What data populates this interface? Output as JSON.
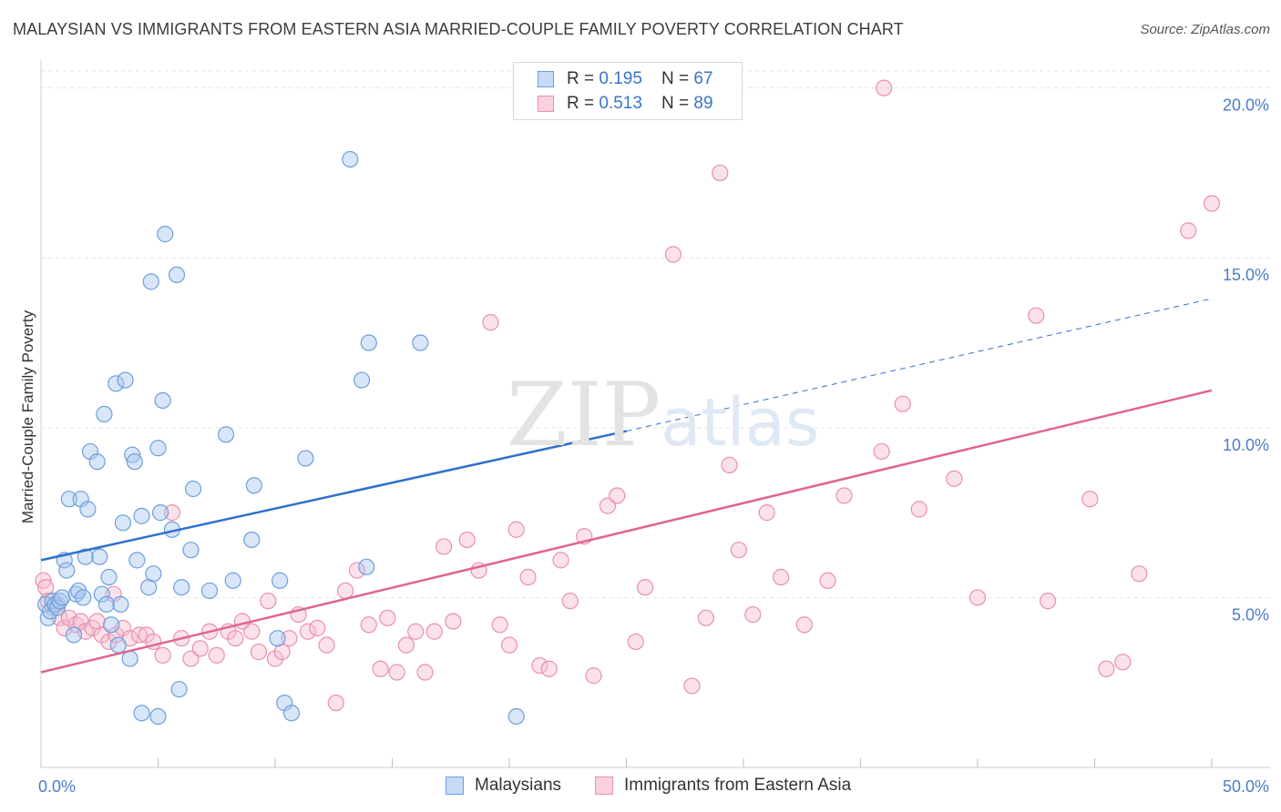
{
  "header": {
    "title": "MALAYSIAN VS IMMIGRANTS FROM EASTERN ASIA MARRIED-COUPLE FAMILY POVERTY CORRELATION CHART",
    "source": "Source: ZipAtlas.com"
  },
  "watermark": {
    "zip": "ZIP",
    "atlas": "atlas"
  },
  "legend_top": {
    "rows": [
      {
        "r_label": "R = ",
        "r_value": "0.195",
        "n_label": "N = ",
        "n_value": "67"
      },
      {
        "r_label": "R = ",
        "r_value": "0.513",
        "n_label": "N = ",
        "n_value": "89"
      }
    ]
  },
  "legend_bottom": {
    "series1": "Malaysians",
    "series2": "Immigrants from Eastern Asia"
  },
  "colors": {
    "blue_fill": "#a9c8ef",
    "blue_stroke": "#6e9fdc",
    "blue_line": "#2f6fce",
    "pink_fill": "#f7bfd1",
    "pink_stroke": "#e98fb0",
    "pink_line": "#e0648f",
    "grid": "#e3e3e3",
    "tick_text": "#4a7cc9"
  },
  "chart_data": {
    "type": "scatter",
    "title": "MALAYSIAN VS IMMIGRANTS FROM EASTERN ASIA MARRIED-COUPLE FAMILY POVERTY CORRELATION CHART",
    "xlabel": "",
    "ylabel": "Married-Couple Family Poverty",
    "xlim": [
      0,
      50
    ],
    "ylim": [
      0,
      20.5
    ],
    "x_tick_labels": [
      "0.0%",
      "50.0%"
    ],
    "y_ticks": [
      5,
      10,
      15,
      20
    ],
    "y_tick_labels": [
      "5.0%",
      "10.0%",
      "15.0%",
      "20.0%"
    ],
    "grid": true,
    "legend_position": "bottom",
    "series": [
      {
        "name": "Malaysians",
        "R": 0.195,
        "N": 67,
        "trend": {
          "x0": 0,
          "y0": 6.1,
          "x1": 25,
          "y1": 9.9,
          "dash_x1": 50,
          "dash_y1": 13.8
        },
        "points": [
          [
            0.2,
            4.8
          ],
          [
            0.3,
            4.4
          ],
          [
            0.4,
            4.6
          ],
          [
            0.5,
            4.9
          ],
          [
            0.6,
            4.8
          ],
          [
            0.7,
            4.7
          ],
          [
            0.8,
            4.9
          ],
          [
            0.9,
            5.0
          ],
          [
            1.0,
            6.1
          ],
          [
            1.1,
            5.8
          ],
          [
            1.2,
            7.9
          ],
          [
            1.4,
            3.9
          ],
          [
            1.5,
            5.1
          ],
          [
            1.6,
            5.2
          ],
          [
            1.7,
            7.9
          ],
          [
            1.8,
            5.0
          ],
          [
            1.9,
            6.2
          ],
          [
            2.0,
            7.6
          ],
          [
            2.1,
            9.3
          ],
          [
            2.4,
            9.0
          ],
          [
            2.5,
            6.2
          ],
          [
            2.6,
            5.1
          ],
          [
            2.7,
            10.4
          ],
          [
            2.8,
            4.8
          ],
          [
            2.9,
            5.6
          ],
          [
            3.0,
            4.2
          ],
          [
            3.2,
            11.3
          ],
          [
            3.3,
            3.6
          ],
          [
            3.4,
            4.8
          ],
          [
            3.5,
            7.2
          ],
          [
            3.6,
            11.4
          ],
          [
            3.8,
            3.2
          ],
          [
            3.9,
            9.2
          ],
          [
            4.0,
            9.0
          ],
          [
            4.1,
            6.1
          ],
          [
            4.3,
            7.4
          ],
          [
            4.3,
            1.6
          ],
          [
            4.6,
            5.3
          ],
          [
            4.7,
            14.3
          ],
          [
            4.8,
            5.7
          ],
          [
            5.0,
            9.4
          ],
          [
            5.0,
            1.5
          ],
          [
            5.1,
            7.5
          ],
          [
            5.2,
            10.8
          ],
          [
            5.3,
            15.7
          ],
          [
            5.6,
            7.0
          ],
          [
            5.8,
            14.5
          ],
          [
            5.9,
            2.3
          ],
          [
            6.0,
            5.3
          ],
          [
            6.4,
            6.4
          ],
          [
            6.5,
            8.2
          ],
          [
            7.2,
            5.2
          ],
          [
            7.9,
            9.8
          ],
          [
            8.2,
            5.5
          ],
          [
            9.0,
            6.7
          ],
          [
            9.1,
            8.3
          ],
          [
            10.1,
            3.8
          ],
          [
            10.2,
            5.5
          ],
          [
            10.4,
            1.9
          ],
          [
            10.7,
            1.6
          ],
          [
            11.3,
            9.1
          ],
          [
            13.2,
            17.9
          ],
          [
            13.7,
            11.4
          ],
          [
            13.9,
            5.9
          ],
          [
            14.0,
            12.5
          ],
          [
            16.2,
            12.5
          ],
          [
            20.3,
            1.5
          ]
        ]
      },
      {
        "name": "Immigrants from Eastern Asia",
        "R": 0.513,
        "N": 89,
        "trend": {
          "x0": 0,
          "y0": 2.8,
          "x1": 50,
          "y1": 11.1
        },
        "points": [
          [
            0.1,
            5.5
          ],
          [
            0.2,
            5.3
          ],
          [
            0.3,
            4.9
          ],
          [
            0.5,
            4.7
          ],
          [
            0.7,
            4.8
          ],
          [
            0.8,
            4.4
          ],
          [
            1.0,
            4.1
          ],
          [
            1.2,
            4.4
          ],
          [
            1.5,
            4.2
          ],
          [
            1.7,
            4.3
          ],
          [
            1.9,
            4.0
          ],
          [
            2.2,
            4.1
          ],
          [
            2.4,
            4.3
          ],
          [
            2.6,
            3.9
          ],
          [
            2.9,
            3.7
          ],
          [
            3.1,
            5.1
          ],
          [
            3.2,
            3.9
          ],
          [
            3.5,
            4.1
          ],
          [
            3.8,
            3.8
          ],
          [
            4.2,
            3.9
          ],
          [
            4.5,
            3.9
          ],
          [
            4.8,
            3.7
          ],
          [
            5.2,
            3.3
          ],
          [
            5.6,
            7.5
          ],
          [
            6.0,
            3.8
          ],
          [
            6.4,
            3.2
          ],
          [
            6.8,
            3.5
          ],
          [
            7.2,
            4.0
          ],
          [
            7.5,
            3.3
          ],
          [
            8.0,
            4.0
          ],
          [
            8.3,
            3.8
          ],
          [
            8.6,
            4.3
          ],
          [
            9.0,
            4.0
          ],
          [
            9.3,
            3.4
          ],
          [
            9.7,
            4.9
          ],
          [
            10.0,
            3.2
          ],
          [
            10.3,
            3.4
          ],
          [
            10.6,
            3.8
          ],
          [
            11.0,
            4.5
          ],
          [
            11.4,
            4.0
          ],
          [
            11.8,
            4.1
          ],
          [
            12.2,
            3.6
          ],
          [
            12.6,
            1.9
          ],
          [
            13.0,
            5.2
          ],
          [
            13.5,
            5.8
          ],
          [
            14.0,
            4.2
          ],
          [
            14.5,
            2.9
          ],
          [
            14.8,
            4.4
          ],
          [
            15.2,
            2.8
          ],
          [
            15.6,
            3.6
          ],
          [
            16.0,
            4.0
          ],
          [
            16.4,
            2.8
          ],
          [
            16.8,
            4.0
          ],
          [
            17.2,
            6.5
          ],
          [
            17.6,
            4.3
          ],
          [
            18.2,
            6.7
          ],
          [
            18.7,
            5.8
          ],
          [
            19.2,
            13.1
          ],
          [
            19.6,
            4.2
          ],
          [
            20.0,
            3.6
          ],
          [
            20.3,
            7.0
          ],
          [
            20.8,
            5.6
          ],
          [
            21.3,
            3.0
          ],
          [
            21.7,
            2.9
          ],
          [
            22.2,
            6.1
          ],
          [
            22.6,
            4.9
          ],
          [
            23.2,
            6.8
          ],
          [
            23.6,
            2.7
          ],
          [
            24.2,
            7.7
          ],
          [
            24.6,
            8.0
          ],
          [
            25.4,
            3.7
          ],
          [
            25.8,
            5.3
          ],
          [
            27.0,
            15.1
          ],
          [
            27.8,
            2.4
          ],
          [
            28.4,
            4.4
          ],
          [
            29.0,
            17.5
          ],
          [
            29.4,
            8.9
          ],
          [
            29.8,
            6.4
          ],
          [
            30.4,
            4.5
          ],
          [
            31.0,
            7.5
          ],
          [
            31.6,
            5.6
          ],
          [
            32.6,
            4.2
          ],
          [
            33.6,
            5.5
          ],
          [
            34.3,
            8.0
          ],
          [
            35.9,
            9.3
          ],
          [
            36.0,
            20.0
          ],
          [
            37.5,
            7.6
          ],
          [
            40.0,
            5.0
          ],
          [
            42.5,
            13.3
          ]
        ],
        "extra_points": [
          [
            36.8,
            10.7
          ],
          [
            39.0,
            8.5
          ],
          [
            43.0,
            4.9
          ],
          [
            44.8,
            7.9
          ],
          [
            45.5,
            2.9
          ],
          [
            46.2,
            3.1
          ],
          [
            46.9,
            5.7
          ],
          [
            49.0,
            15.8
          ],
          [
            50.0,
            16.6
          ]
        ]
      }
    ]
  }
}
